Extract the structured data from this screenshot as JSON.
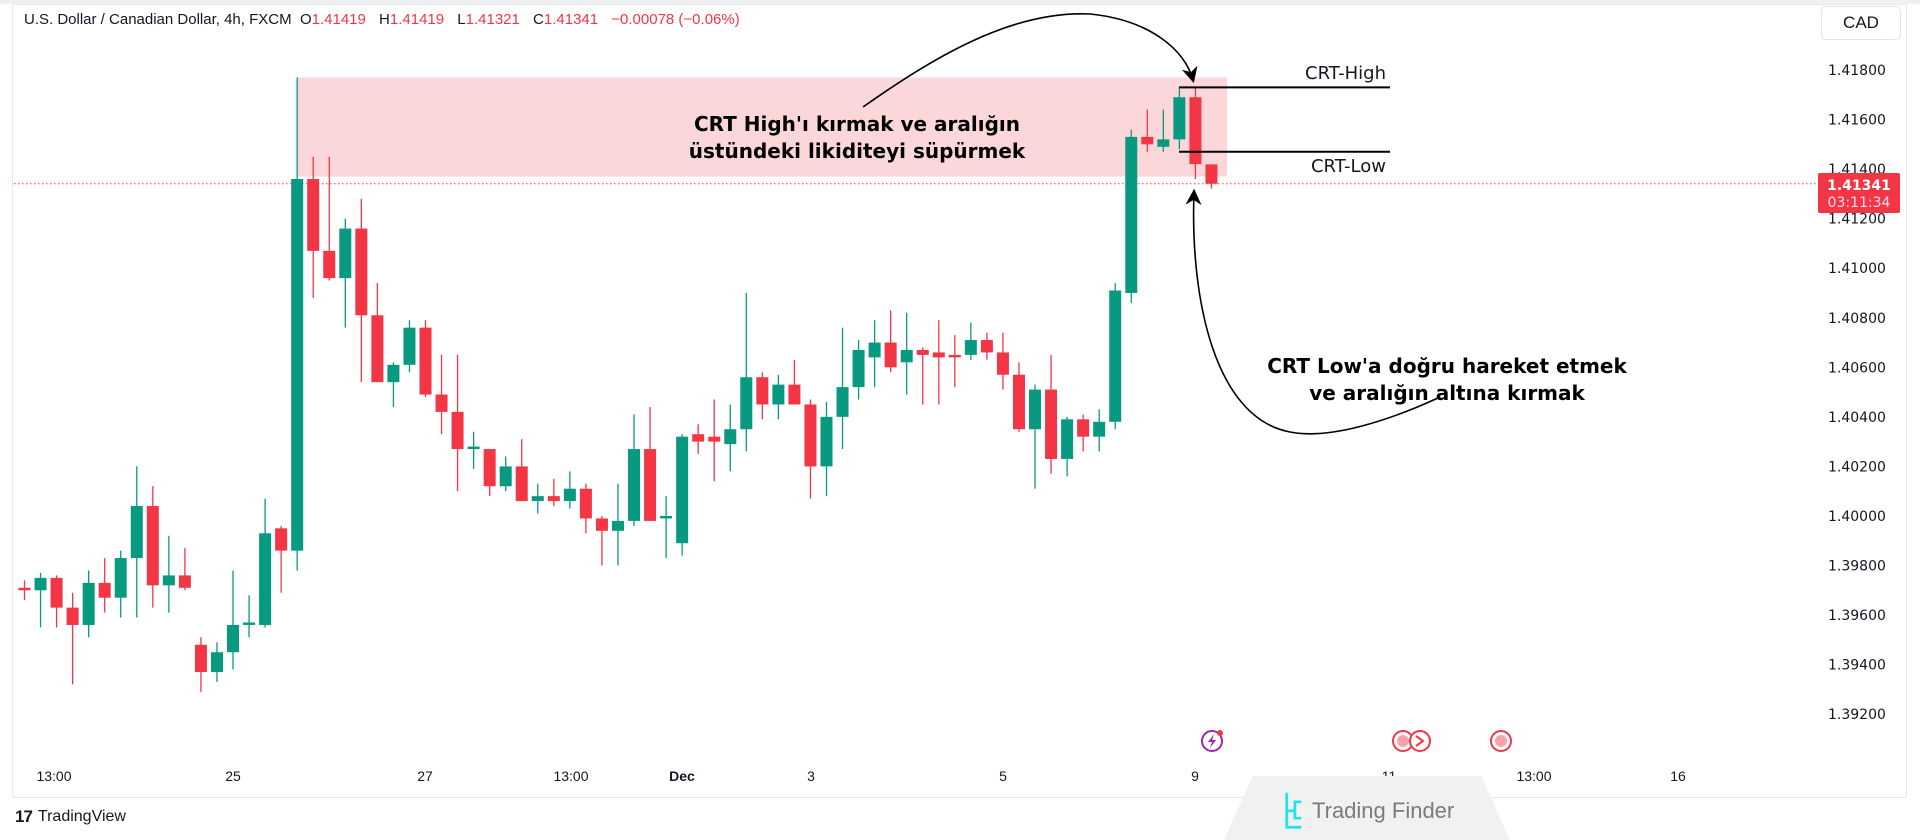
{
  "legend": {
    "symbol": "U.S. Dollar / Canadian Dollar, 4h, FXCM",
    "o_label": "O",
    "o": "1.41419",
    "h_label": "H",
    "h": "1.41419",
    "l_label": "L",
    "l": "1.41321",
    "c_label": "C",
    "c": "1.41341",
    "change": "−0.00078 (−0.06%)"
  },
  "currency_button": "CAD",
  "price_axis": [
    "1.41800",
    "1.41600",
    "1.41400",
    "1.41200",
    "1.41000",
    "1.40800",
    "1.40600",
    "1.40400",
    "1.40200",
    "1.40000",
    "1.39800",
    "1.39600",
    "1.39400",
    "1.39200"
  ],
  "current_price": {
    "value": "1.41341",
    "countdown": "03:11:34",
    "color": "#f23645"
  },
  "time_axis": [
    "13:00",
    "25",
    "27",
    "13:00",
    "Dec",
    "3",
    "5",
    "9",
    "11",
    "13:00",
    "16"
  ],
  "annotations": {
    "crt_high_label": "CRT-High",
    "crt_low_label": "CRT-Low",
    "top_note": [
      "CRT High'ı kırmak ve aralığın",
      "üstündeki likiditeyi süpürmek"
    ],
    "bottom_note": [
      "CRT Low'a doğru hareket etmek",
      "ve aralığın altına kırmak"
    ]
  },
  "events": [
    "lightning-event-icon",
    "us-flag-icon",
    "us-flag-icon",
    "us-flag-icon"
  ],
  "branding": {
    "tradingview": "TradingView",
    "watermark": "Trading Finder"
  },
  "colors": {
    "up": "#089981",
    "down": "#f23645",
    "zone": "#fcd7da"
  },
  "chart_data": {
    "type": "candlestick",
    "title": "U.S. Dollar / Canadian Dollar, 4h, FXCM",
    "ylim": [
      1.391,
      1.4195
    ],
    "grid": false,
    "crt_high": 1.4173,
    "crt_low": 1.4147,
    "zone": {
      "from_candle": 18,
      "top": 1.4177,
      "bottom": 1.4137
    },
    "candles": [
      [
        1.3971,
        1.3974,
        1.3966,
        1.397
      ],
      [
        1.397,
        1.3977,
        1.3955,
        1.3975
      ],
      [
        1.3975,
        1.3976,
        1.3955,
        1.3963
      ],
      [
        1.3963,
        1.3969,
        1.3932,
        1.3956
      ],
      [
        1.3956,
        1.3978,
        1.3951,
        1.3973
      ],
      [
        1.3973,
        1.3983,
        1.3961,
        1.3967
      ],
      [
        1.3967,
        1.3986,
        1.3959,
        1.3983
      ],
      [
        1.3983,
        1.402,
        1.3959,
        1.4004
      ],
      [
        1.4004,
        1.4012,
        1.3963,
        1.3972
      ],
      [
        1.3972,
        1.3992,
        1.3961,
        1.3976
      ],
      [
        1.3976,
        1.3987,
        1.397,
        1.3971
      ],
      [
        1.3948,
        1.3951,
        1.3929,
        1.3937
      ],
      [
        1.3937,
        1.3949,
        1.3933,
        1.3945
      ],
      [
        1.3945,
        1.3978,
        1.3938,
        1.3956
      ],
      [
        1.3956,
        1.3968,
        1.3951,
        1.3957
      ],
      [
        1.3956,
        1.4007,
        1.3955,
        1.3993
      ],
      [
        1.3995,
        1.3996,
        1.3969,
        1.3986
      ],
      [
        1.3986,
        1.4177,
        1.3978,
        1.4136
      ],
      [
        1.4136,
        1.4145,
        1.4088,
        1.4107
      ],
      [
        1.4107,
        1.4145,
        1.4095,
        1.4096
      ],
      [
        1.4096,
        1.412,
        1.4076,
        1.4116
      ],
      [
        1.4116,
        1.4128,
        1.4054,
        1.4081
      ],
      [
        1.4081,
        1.4094,
        1.4054,
        1.4054
      ],
      [
        1.4054,
        1.4062,
        1.4044,
        1.4061
      ],
      [
        1.4061,
        1.4079,
        1.4058,
        1.4076
      ],
      [
        1.4076,
        1.4079,
        1.4048,
        1.4049
      ],
      [
        1.4049,
        1.4065,
        1.4033,
        1.4042
      ],
      [
        1.4042,
        1.4065,
        1.401,
        1.4027
      ],
      [
        1.4027,
        1.4034,
        1.4019,
        1.4028
      ],
      [
        1.4027,
        1.4027,
        1.4008,
        1.4012
      ],
      [
        1.4012,
        1.4024,
        1.401,
        1.402
      ],
      [
        1.402,
        1.4031,
        1.4006,
        1.4006
      ],
      [
        1.4006,
        1.4013,
        1.4001,
        1.4008
      ],
      [
        1.4008,
        1.4015,
        1.4004,
        1.4006
      ],
      [
        1.4006,
        1.4018,
        1.4003,
        1.4011
      ],
      [
        1.4011,
        1.4013,
        1.3993,
        1.3999
      ],
      [
        1.3999,
        1.4,
        1.398,
        1.3994
      ],
      [
        1.3994,
        1.4013,
        1.398,
        1.3998
      ],
      [
        1.3998,
        1.4041,
        1.3996,
        1.4027
      ],
      [
        1.4027,
        1.4044,
        1.3998,
        1.3998
      ],
      [
        1.3999,
        1.4008,
        1.3983,
        1.4
      ],
      [
        1.3989,
        1.4033,
        1.3984,
        1.4032
      ],
      [
        1.4033,
        1.4037,
        1.4025,
        1.403
      ],
      [
        1.4032,
        1.4047,
        1.4014,
        1.403
      ],
      [
        1.4029,
        1.4045,
        1.4018,
        1.4035
      ],
      [
        1.4035,
        1.409,
        1.4026,
        1.4056
      ],
      [
        1.4056,
        1.4058,
        1.4039,
        1.4045
      ],
      [
        1.4045,
        1.4057,
        1.4039,
        1.4053
      ],
      [
        1.4053,
        1.4063,
        1.4045,
        1.4045
      ],
      [
        1.4045,
        1.4047,
        1.4007,
        1.402
      ],
      [
        1.402,
        1.4046,
        1.4008,
        1.404
      ],
      [
        1.404,
        1.4076,
        1.4027,
        1.4052
      ],
      [
        1.4052,
        1.4071,
        1.4047,
        1.4067
      ],
      [
        1.4064,
        1.4079,
        1.4052,
        1.407
      ],
      [
        1.407,
        1.4083,
        1.4058,
        1.406
      ],
      [
        1.4062,
        1.4082,
        1.4049,
        1.4067
      ],
      [
        1.4067,
        1.4068,
        1.4045,
        1.4065
      ],
      [
        1.4066,
        1.4079,
        1.4045,
        1.4064
      ],
      [
        1.4065,
        1.4073,
        1.4052,
        1.4064
      ],
      [
        1.4065,
        1.4078,
        1.4063,
        1.4071
      ],
      [
        1.4071,
        1.4074,
        1.4063,
        1.4066
      ],
      [
        1.4066,
        1.4074,
        1.4051,
        1.4057
      ],
      [
        1.4057,
        1.4062,
        1.4034,
        1.4035
      ],
      [
        1.4035,
        1.4053,
        1.4011,
        1.4051
      ],
      [
        1.4051,
        1.4065,
        1.4017,
        1.4023
      ],
      [
        1.4023,
        1.404,
        1.4016,
        1.4039
      ],
      [
        1.4039,
        1.4041,
        1.4026,
        1.4032
      ],
      [
        1.4032,
        1.4043,
        1.4026,
        1.4038
      ],
      [
        1.4038,
        1.4094,
        1.4035,
        1.4091
      ],
      [
        1.409,
        1.4156,
        1.4086,
        1.4153
      ],
      [
        1.4153,
        1.4164,
        1.4147,
        1.415
      ],
      [
        1.4149,
        1.4164,
        1.4147,
        1.4152
      ],
      [
        1.4152,
        1.4173,
        1.4148,
        1.4169
      ],
      [
        1.4169,
        1.4173,
        1.4136,
        1.4142
      ],
      [
        1.41419,
        1.41419,
        1.41321,
        1.41341
      ]
    ]
  }
}
